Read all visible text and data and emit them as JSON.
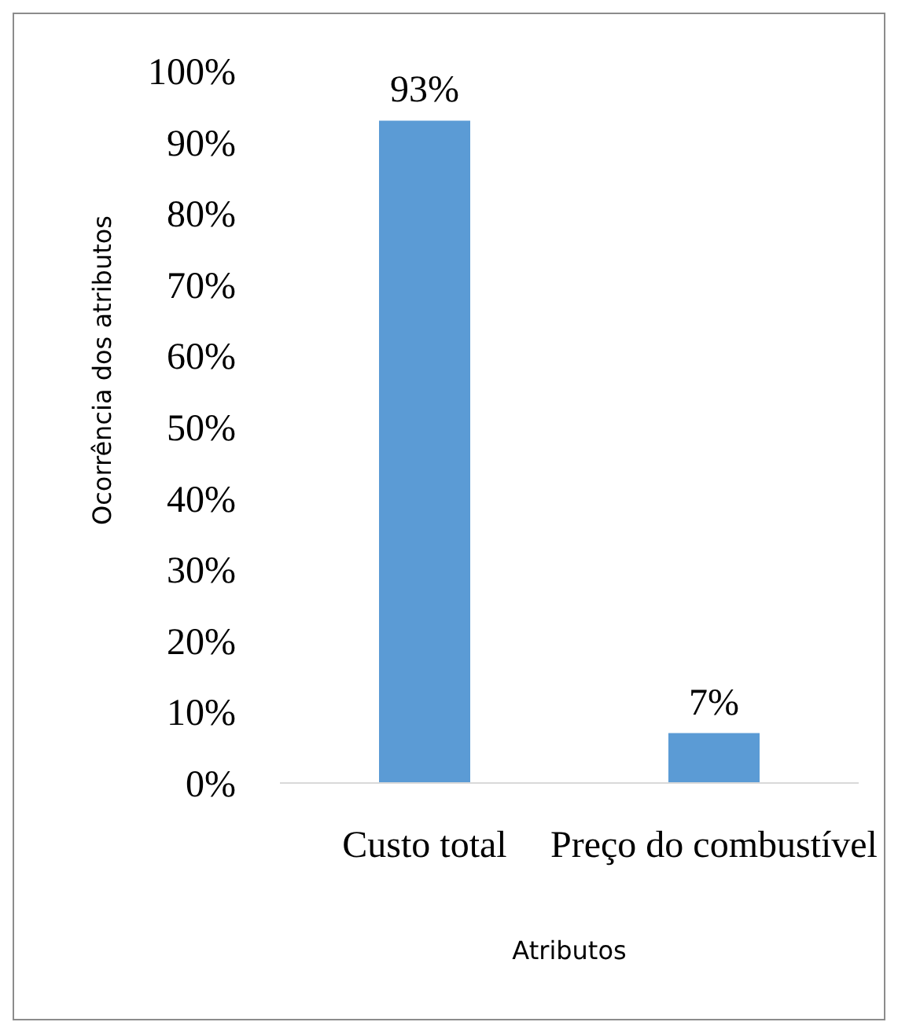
{
  "chart_data": {
    "type": "bar",
    "xlabel": "Atributos",
    "ylabel": "Ocorrência  dos atributos",
    "categories": [
      "Custo total",
      "Preço do combustível"
    ],
    "values": [
      93,
      7
    ],
    "value_labels": [
      "93%",
      "7%"
    ],
    "color": "#5b9bd5",
    "ylim": [
      0,
      100
    ],
    "yticks": [
      {
        "value": 0,
        "label": "0%"
      },
      {
        "value": 10,
        "label": "10%"
      },
      {
        "value": 20,
        "label": "20%"
      },
      {
        "value": 30,
        "label": "30%"
      },
      {
        "value": 40,
        "label": "40%"
      },
      {
        "value": 50,
        "label": "50%"
      },
      {
        "value": 60,
        "label": "60%"
      },
      {
        "value": 70,
        "label": "70%"
      },
      {
        "value": 80,
        "label": "80%"
      },
      {
        "value": 90,
        "label": "90%"
      },
      {
        "value": 100,
        "label": "100%"
      }
    ]
  }
}
